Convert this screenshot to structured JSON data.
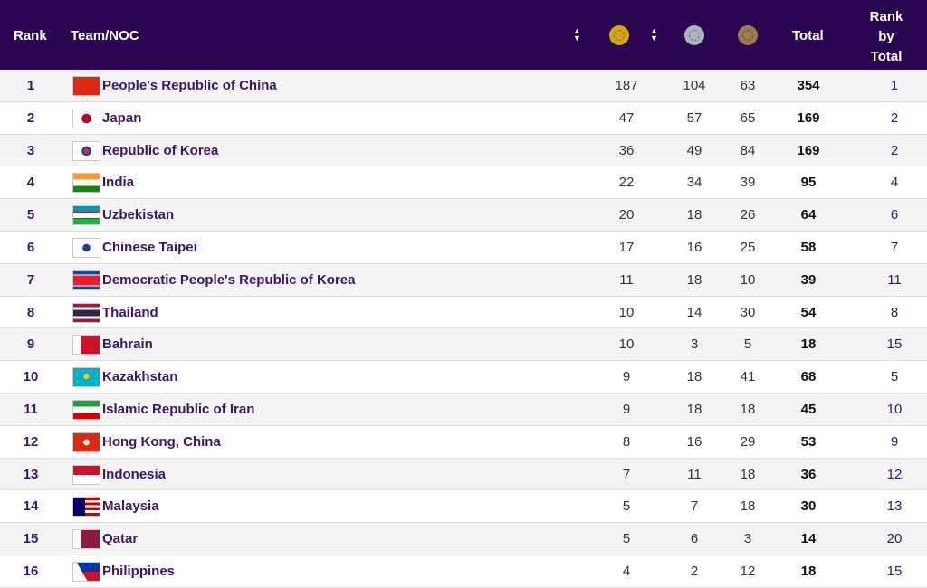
{
  "header": {
    "rank": "Rank",
    "team": "Team/NOC",
    "total": "Total",
    "rank_by_total": [
      "Rank",
      "by",
      "Total"
    ],
    "medals": [
      {
        "name": "gold-medal-icon",
        "color": "#d4a516"
      },
      {
        "name": "silver-medal-icon",
        "color": "#a9b4bd"
      },
      {
        "name": "bronze-medal-icon",
        "color": "#a07850"
      }
    ],
    "sort_icon": "sort-icon"
  },
  "rows": [
    {
      "rank": "1",
      "team": "People's Republic of China",
      "flag": "china-flag-icon",
      "gold": "187",
      "silver": "104",
      "bronze": "63",
      "total": "354",
      "rank_by_total": "1"
    },
    {
      "rank": "2",
      "team": "Japan",
      "flag": "japan-flag-icon",
      "gold": "47",
      "silver": "57",
      "bronze": "65",
      "total": "169",
      "rank_by_total": "2"
    },
    {
      "rank": "3",
      "team": "Republic of Korea",
      "flag": "korea-flag-icon",
      "gold": "36",
      "silver": "49",
      "bronze": "84",
      "total": "169",
      "rank_by_total": "2"
    },
    {
      "rank": "4",
      "team": "India",
      "flag": "india-flag-icon",
      "gold": "22",
      "silver": "34",
      "bronze": "39",
      "total": "95",
      "rank_by_total": "4"
    },
    {
      "rank": "5",
      "team": "Uzbekistan",
      "flag": "uzbekistan-flag-icon",
      "gold": "20",
      "silver": "18",
      "bronze": "26",
      "total": "64",
      "rank_by_total": "6"
    },
    {
      "rank": "6",
      "team": "Chinese Taipei",
      "flag": "chinese-taipei-flag-icon",
      "gold": "17",
      "silver": "16",
      "bronze": "25",
      "total": "58",
      "rank_by_total": "7"
    },
    {
      "rank": "7",
      "team": "Democratic People's Republic of Korea",
      "flag": "dprk-flag-icon",
      "gold": "11",
      "silver": "18",
      "bronze": "10",
      "total": "39",
      "rank_by_total": "11"
    },
    {
      "rank": "8",
      "team": "Thailand",
      "flag": "thailand-flag-icon",
      "gold": "10",
      "silver": "14",
      "bronze": "30",
      "total": "54",
      "rank_by_total": "8"
    },
    {
      "rank": "9",
      "team": "Bahrain",
      "flag": "bahrain-flag-icon",
      "gold": "10",
      "silver": "3",
      "bronze": "5",
      "total": "18",
      "rank_by_total": "15"
    },
    {
      "rank": "10",
      "team": "Kazakhstan",
      "flag": "kazakhstan-flag-icon",
      "gold": "9",
      "silver": "18",
      "bronze": "41",
      "total": "68",
      "rank_by_total": "5"
    },
    {
      "rank": "11",
      "team": "Islamic Republic of Iran",
      "flag": "iran-flag-icon",
      "gold": "9",
      "silver": "18",
      "bronze": "18",
      "total": "45",
      "rank_by_total": "10"
    },
    {
      "rank": "12",
      "team": "Hong Kong, China",
      "flag": "hong-kong-flag-icon",
      "gold": "8",
      "silver": "16",
      "bronze": "29",
      "total": "53",
      "rank_by_total": "9"
    },
    {
      "rank": "13",
      "team": "Indonesia",
      "flag": "indonesia-flag-icon",
      "gold": "7",
      "silver": "11",
      "bronze": "18",
      "total": "36",
      "rank_by_total": "12"
    },
    {
      "rank": "14",
      "team": "Malaysia",
      "flag": "malaysia-flag-icon",
      "gold": "5",
      "silver": "7",
      "bronze": "18",
      "total": "30",
      "rank_by_total": "13"
    },
    {
      "rank": "15",
      "team": "Qatar",
      "flag": "qatar-flag-icon",
      "gold": "5",
      "silver": "6",
      "bronze": "3",
      "total": "14",
      "rank_by_total": "20"
    },
    {
      "rank": "16",
      "team": "Philippines",
      "flag": "philippines-flag-icon",
      "gold": "4",
      "silver": "2",
      "bronze": "12",
      "total": "18",
      "rank_by_total": "15"
    }
  ]
}
